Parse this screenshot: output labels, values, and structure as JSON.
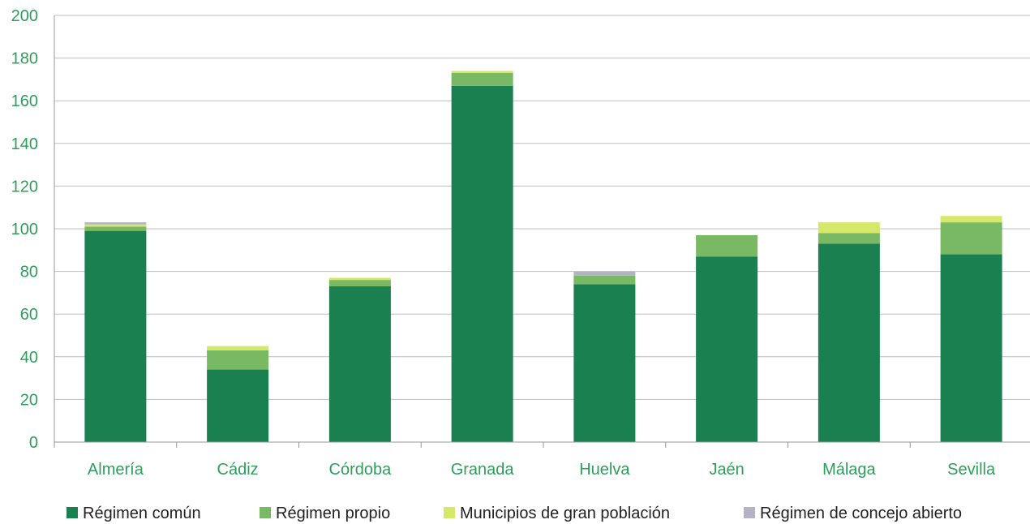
{
  "chart_data": {
    "type": "bar",
    "stacked": true,
    "categories": [
      "Almería",
      "Cádiz",
      "Córdoba",
      "Granada",
      "Huelva",
      "Jaén",
      "Málaga",
      "Sevilla"
    ],
    "series": [
      {
        "name": "Régimen común",
        "color": "#1a8050",
        "values": [
          99,
          34,
          73,
          167,
          74,
          87,
          93,
          88
        ]
      },
      {
        "name": "Régimen propio",
        "color": "#79b963",
        "values": [
          2,
          9,
          3,
          6,
          4,
          10,
          5,
          15
        ]
      },
      {
        "name": "Municipios de gran población",
        "color": "#d6e86a",
        "values": [
          1,
          2,
          1,
          1,
          0,
          0,
          5,
          3
        ]
      },
      {
        "name": "Régimen de concejo abierto",
        "color": "#b3b3c6",
        "values": [
          1,
          0,
          0,
          0,
          2,
          0,
          0,
          0
        ]
      }
    ],
    "ylim": [
      0,
      200
    ],
    "yticks": [
      0,
      20,
      40,
      60,
      80,
      100,
      120,
      140,
      160,
      180,
      200
    ],
    "grid": true,
    "legend_position": "bottom",
    "title": "",
    "xlabel": "",
    "ylabel": ""
  }
}
